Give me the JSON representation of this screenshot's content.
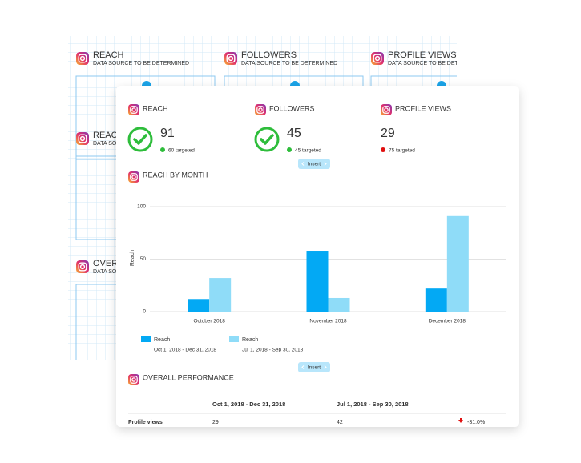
{
  "back_card": {
    "widgets": [
      {
        "title": "REACH",
        "subtitle": "DATA SOURCE TO BE DETERMINED"
      },
      {
        "title": "FOLLOWERS",
        "subtitle": "DATA SOURCE TO BE DETERMINED"
      },
      {
        "title": "PROFILE VIEWS",
        "subtitle": "DATA SOURCE TO BE DETERMINED"
      },
      {
        "title": "REACH",
        "subtitle": "DATA SOURCE TO BE DETERMINED"
      },
      {
        "title": "OVERALL PERFORMANCE",
        "subtitle": "DATA SOURCE TO BE DETERMINED"
      }
    ]
  },
  "front_card": {
    "metrics": [
      {
        "title": "REACH",
        "value": 91,
        "target": "60 targeted",
        "target_met": true
      },
      {
        "title": "FOLLOWERS",
        "value": 45,
        "target": "45 targeted",
        "target_met": true
      },
      {
        "title": "PROFILE VIEWS",
        "value": 29,
        "target": "75 targeted",
        "target_met": false
      }
    ],
    "insert_buttons": [
      "Insert",
      "Insert"
    ],
    "chart_title": "REACH BY MONTH",
    "table_title": "OVERALL PERFORMANCE",
    "table": {
      "header": [
        "Oct 1, 2018 - Dec 31, 2018",
        "Jul 1, 2018 - Sep 30, 2018"
      ],
      "rows": [
        [
          "Profile views",
          29,
          42,
          "-31.0%"
        ]
      ]
    }
  },
  "chart_data": {
    "type": "bar",
    "y_label": "Reach",
    "categories": [
      "October 2018",
      "November 2018",
      "December 2018"
    ],
    "series": [
      {
        "name": "Reach",
        "period": "Oct 1, 2018 - Dec 31, 2018",
        "color": "#03a9f4",
        "values": [
          12,
          58,
          22
        ]
      },
      {
        "name": "Reach",
        "period": "Jul 1, 2018 - Sep 30, 2018",
        "color": "#8fdcf8",
        "values": [
          32,
          13,
          91
        ]
      }
    ],
    "ylim": [
      0,
      100
    ],
    "yticks": [
      0,
      50,
      100
    ],
    "grid": true
  }
}
